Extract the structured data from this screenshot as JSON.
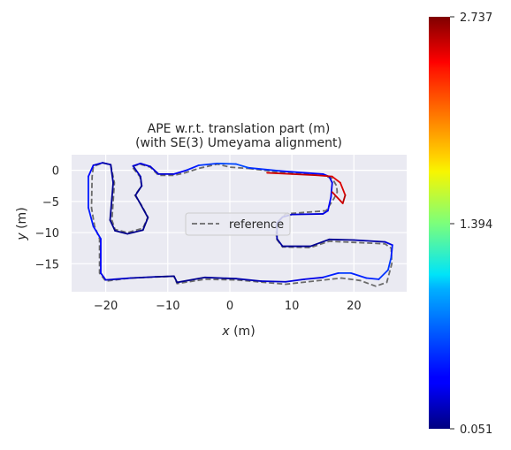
{
  "chart_data": {
    "type": "line",
    "title": "APE w.r.t. translation part (m)",
    "subtitle": "(with SE(3) Umeyama alignment)",
    "xlabel_var": "x",
    "xlabel_unit": " (m)",
    "ylabel_var": "y",
    "ylabel_unit": " (m)",
    "xlim": [
      -25.5,
      28.5
    ],
    "ylim": [
      -19.5,
      2.5
    ],
    "xticks": [
      -20,
      -10,
      0,
      10,
      20
    ],
    "yticks": [
      0,
      -5,
      -10,
      -15
    ],
    "grid": true,
    "legend": {
      "entries": [
        "reference"
      ],
      "placement": "center"
    },
    "colorbar": {
      "min": 0.051,
      "max": 2.737,
      "ticks": [
        "2.737",
        "1.394",
        "0.051"
      ],
      "colormap": "jet"
    },
    "reference_style": {
      "color": "#6b6b6b",
      "dash": "dashed"
    },
    "reference_path": [
      [
        3,
        0.3
      ],
      [
        8,
        -0.3
      ],
      [
        12,
        -0.6
      ],
      [
        15,
        -0.8
      ],
      [
        16.5,
        -1.3
      ],
      [
        17.2,
        -2.5
      ],
      [
        17.3,
        -3.5
      ],
      [
        16.8,
        -4.5
      ],
      [
        15.5,
        -6.5
      ],
      [
        9,
        -7
      ],
      [
        7.5,
        -8.5
      ],
      [
        7.5,
        -11
      ],
      [
        8.5,
        -12.3
      ],
      [
        13,
        -12.4
      ],
      [
        16,
        -11.4
      ],
      [
        25,
        -11.8
      ],
      [
        26,
        -12.5
      ],
      [
        26.1,
        -15
      ],
      [
        25.3,
        -18
      ],
      [
        23.5,
        -18.6
      ],
      [
        21,
        -17.7
      ],
      [
        18,
        -17.3
      ],
      [
        9,
        -18.3
      ],
      [
        1,
        -17.6
      ],
      [
        -4,
        -17.5
      ],
      [
        -8.5,
        -18.2
      ],
      [
        -9,
        -17
      ],
      [
        -16,
        -17.3
      ],
      [
        -20,
        -17.8
      ],
      [
        -21,
        -16.5
      ],
      [
        -21,
        -11
      ],
      [
        -21.8,
        -9
      ],
      [
        -22.3,
        -6
      ],
      [
        -22.2,
        -1
      ],
      [
        -22,
        0.6
      ],
      [
        -20.5,
        1.2
      ],
      [
        -19.2,
        0.9
      ],
      [
        -18.6,
        -2
      ],
      [
        -19,
        -8
      ],
      [
        -18.5,
        -9.5
      ],
      [
        -16.5,
        -10
      ],
      [
        -14,
        -9.3
      ],
      [
        -13.2,
        -7.5
      ],
      [
        -14.3,
        -5.5
      ],
      [
        -15.3,
        -4
      ],
      [
        -14.2,
        -2.5
      ],
      [
        -14.5,
        -1
      ],
      [
        -15.8,
        0.6
      ],
      [
        -14.5,
        1
      ],
      [
        -12.8,
        0.5
      ],
      [
        -11.5,
        -0.8
      ],
      [
        -9,
        -0.8
      ],
      [
        -7.5,
        -0.5
      ],
      [
        -5,
        0.3
      ],
      [
        -2,
        1
      ],
      [
        0,
        0.5
      ],
      [
        3,
        0.3
      ]
    ],
    "estimate_path": [
      {
        "x": 3,
        "y": 0.4,
        "e": 0.55
      },
      {
        "x": 8,
        "y": -0.1,
        "e": 0.45
      },
      {
        "x": 12,
        "y": -0.4,
        "e": 0.4
      },
      {
        "x": 15,
        "y": -0.6,
        "e": 0.35
      },
      {
        "x": 16,
        "y": -1,
        "e": 0.35
      },
      {
        "x": 16.5,
        "y": -2,
        "e": 0.3
      },
      {
        "x": 16.3,
        "y": -4.3,
        "e": 0.35
      },
      {
        "x": 15.8,
        "y": -6.5,
        "e": 0.4
      },
      {
        "x": 15,
        "y": -7,
        "e": 0.3
      },
      {
        "x": 10,
        "y": -7.1,
        "e": 0.25
      },
      {
        "x": 8.5,
        "y": -7.5,
        "e": 0.25
      },
      {
        "x": 7.6,
        "y": -8.5,
        "e": 0.2
      },
      {
        "x": 7.6,
        "y": -11,
        "e": 0.15
      },
      {
        "x": 8.5,
        "y": -12.2,
        "e": 0.1
      },
      {
        "x": 13,
        "y": -12.2,
        "e": 0.1
      },
      {
        "x": 16,
        "y": -11.1,
        "e": 0.1
      },
      {
        "x": 20,
        "y": -11.2,
        "e": 0.1
      },
      {
        "x": 25,
        "y": -11.5,
        "e": 0.2
      },
      {
        "x": 26.2,
        "y": -12,
        "e": 0.4
      },
      {
        "x": 26,
        "y": -14,
        "e": 0.5
      },
      {
        "x": 25.5,
        "y": -16,
        "e": 0.55
      },
      {
        "x": 24,
        "y": -17.5,
        "e": 0.5
      },
      {
        "x": 22,
        "y": -17.3,
        "e": 0.45
      },
      {
        "x": 19.5,
        "y": -16.5,
        "e": 0.5
      },
      {
        "x": 17.5,
        "y": -16.5,
        "e": 0.58
      },
      {
        "x": 15,
        "y": -17.2,
        "e": 0.35
      },
      {
        "x": 12,
        "y": -17.5,
        "e": 0.3
      },
      {
        "x": 9,
        "y": -17.9,
        "e": 0.3
      },
      {
        "x": 5,
        "y": -17.8,
        "e": 0.2
      },
      {
        "x": 1,
        "y": -17.4,
        "e": 0.15
      },
      {
        "x": -4,
        "y": -17.2,
        "e": 0.1
      },
      {
        "x": -8.5,
        "y": -18,
        "e": 0.08
      },
      {
        "x": -9,
        "y": -17,
        "e": 0.08
      },
      {
        "x": -12,
        "y": -17.1,
        "e": 0.1
      },
      {
        "x": -16,
        "y": -17.3,
        "e": 0.2
      },
      {
        "x": -20,
        "y": -17.6,
        "e": 0.3
      },
      {
        "x": -20.8,
        "y": -16.5,
        "e": 0.35
      },
      {
        "x": -20.8,
        "y": -11,
        "e": 0.4
      },
      {
        "x": -22,
        "y": -9,
        "e": 0.45
      },
      {
        "x": -22.8,
        "y": -6,
        "e": 0.45
      },
      {
        "x": -22.8,
        "y": -1,
        "e": 0.45
      },
      {
        "x": -22,
        "y": 0.8,
        "e": 0.35
      },
      {
        "x": -20.5,
        "y": 1.2,
        "e": 0.2
      },
      {
        "x": -19.2,
        "y": 0.9,
        "e": 0.15
      },
      {
        "x": -18.8,
        "y": -2,
        "e": 0.1
      },
      {
        "x": -19.3,
        "y": -8,
        "e": 0.08
      },
      {
        "x": -18.5,
        "y": -9.7,
        "e": 0.08
      },
      {
        "x": -16.5,
        "y": -10.2,
        "e": 0.08
      },
      {
        "x": -14,
        "y": -9.6,
        "e": 0.08
      },
      {
        "x": -13.2,
        "y": -7.6,
        "e": 0.08
      },
      {
        "x": -14.3,
        "y": -5.6,
        "e": 0.08
      },
      {
        "x": -15.2,
        "y": -4,
        "e": 0.08
      },
      {
        "x": -14.2,
        "y": -2.5,
        "e": 0.1
      },
      {
        "x": -14.4,
        "y": -1,
        "e": 0.15
      },
      {
        "x": -15.6,
        "y": 0.7,
        "e": 0.25
      },
      {
        "x": -14.4,
        "y": 1.1,
        "e": 0.3
      },
      {
        "x": -12.8,
        "y": 0.6,
        "e": 0.3
      },
      {
        "x": -11.5,
        "y": -0.6,
        "e": 0.25
      },
      {
        "x": -9,
        "y": -0.6,
        "e": 0.3
      },
      {
        "x": -7,
        "y": 0,
        "e": 0.4
      },
      {
        "x": -5,
        "y": 0.8,
        "e": 0.5
      },
      {
        "x": -2,
        "y": 1.1,
        "e": 0.55
      },
      {
        "x": 1,
        "y": 1,
        "e": 0.6
      },
      {
        "x": 3,
        "y": 0.4,
        "e": 0.55
      }
    ],
    "error_branch": [
      {
        "x": 6,
        "y": -0.4,
        "e": 2.5
      },
      {
        "x": 10,
        "y": -0.6,
        "e": 2.55
      },
      {
        "x": 14,
        "y": -0.8,
        "e": 2.55
      },
      {
        "x": 16.5,
        "y": -1,
        "e": 2.5
      },
      {
        "x": 17.8,
        "y": -2,
        "e": 2.45
      },
      {
        "x": 18.6,
        "y": -4,
        "e": 2.55
      },
      {
        "x": 18.2,
        "y": -5.3,
        "e": 2.65
      },
      {
        "x": 16.5,
        "y": -3.5,
        "e": 2.4
      }
    ]
  }
}
